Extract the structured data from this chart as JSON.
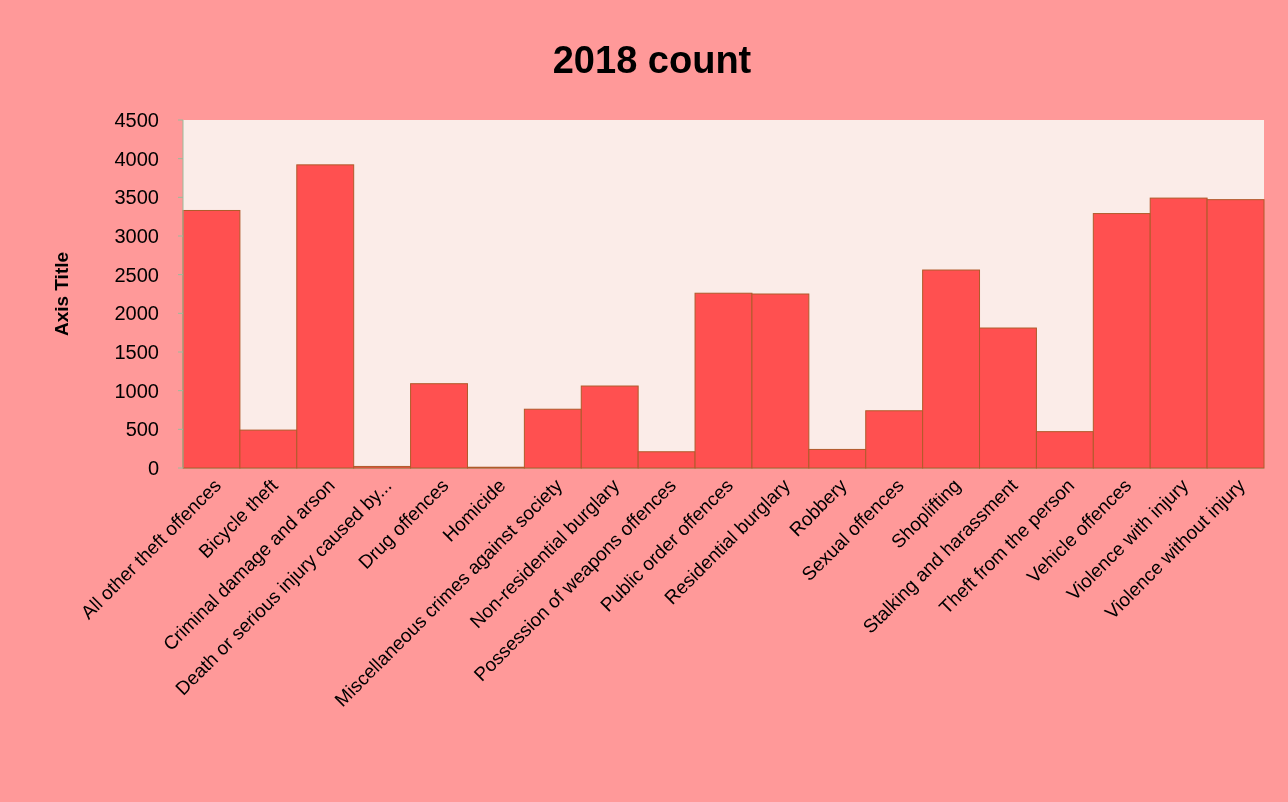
{
  "chart_data": {
    "type": "bar",
    "title": "2018 count",
    "ylabel": "Axis Title",
    "categories": [
      "All other theft offences",
      "Bicycle theft",
      "Criminal damage and arson",
      "Death or serious injury caused by...",
      "Drug offences",
      "Homicide",
      "Miscellaneous crimes against society",
      "Non-residential burglary",
      "Possession of weapons offences",
      "Public order offences",
      "Residential burglary",
      "Robbery",
      "Sexual offences",
      "Shoplifting",
      "Stalking and harassment",
      "Theft from the person",
      "Vehicle offences",
      "Violence with injury",
      "Violence without injury"
    ],
    "values": [
      3330,
      490,
      3920,
      20,
      1090,
      10,
      760,
      1060,
      210,
      2260,
      2250,
      240,
      740,
      2560,
      1810,
      470,
      3290,
      3490,
      3470
    ],
    "color": "#ff5050",
    "ylim": [
      0,
      4500
    ],
    "yticks": [
      0,
      500,
      1000,
      1500,
      2000,
      2500,
      3000,
      3500,
      4000,
      4500
    ],
    "grid": false
  }
}
